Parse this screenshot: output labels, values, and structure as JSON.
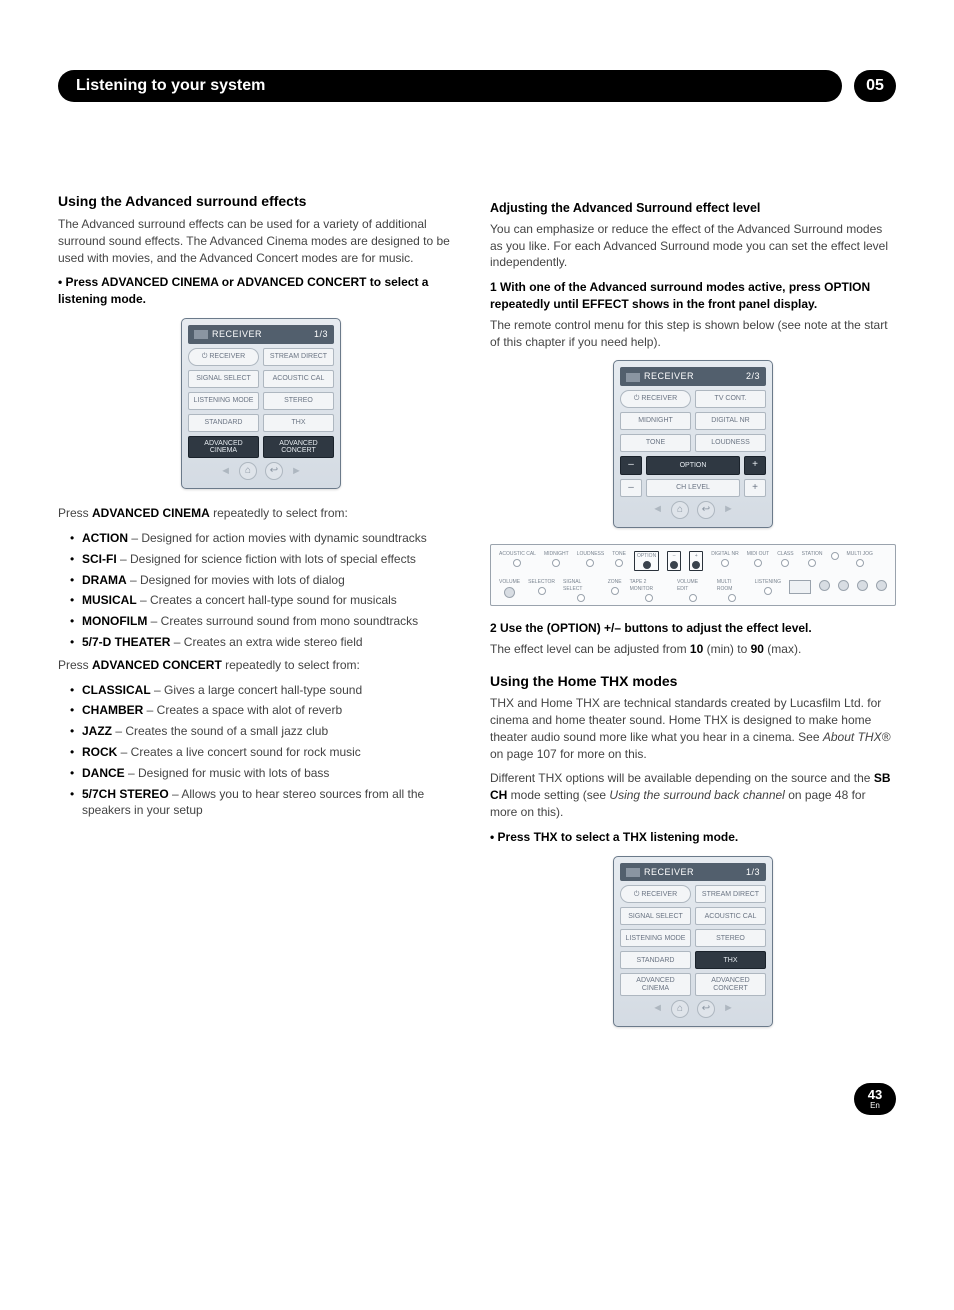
{
  "header": {
    "title": "Listening to your system",
    "chapter": "05"
  },
  "left": {
    "section_title": "Using the Advanced surround effects",
    "intro": "The Advanced surround effects can be used for a variety of additional surround sound effects. The Advanced Cinema modes are designed to be used with movies, and the Advanced Concert modes are for music.",
    "step1": "•   Press ADVANCED CINEMA or ADVANCED CONCERT to select a listening mode.",
    "remote1": {
      "title_left": "RECEIVER",
      "title_right": "1/3",
      "rows": [
        [
          {
            "label": "⏻ RECEIVER",
            "cls": "pill"
          },
          {
            "label": "STREAM DIRECT"
          }
        ],
        [
          {
            "label": "SIGNAL SELECT"
          },
          {
            "label": "ACOUSTIC CAL"
          }
        ],
        [
          {
            "label": "LISTENING MODE"
          },
          {
            "label": "STEREO"
          }
        ],
        [
          {
            "label": "STANDARD"
          },
          {
            "label": "THX"
          }
        ],
        [
          {
            "label": "ADVANCED CINEMA",
            "cls": "dark"
          },
          {
            "label": "ADVANCED CONCERT",
            "cls": "dark"
          }
        ]
      ]
    },
    "press_cinema_pre": "Press ",
    "press_cinema_bold": "ADVANCED CINEMA",
    "press_cinema_post": " repeatedly to select from:",
    "cinema_modes": [
      {
        "name": "ACTION",
        "desc": " – Designed for action movies with dynamic soundtracks"
      },
      {
        "name": "SCI-FI",
        "desc": " – Designed for science fiction with lots of special effects"
      },
      {
        "name": "DRAMA",
        "desc": " – Designed for movies with lots of dialog"
      },
      {
        "name": "MUSICAL",
        "desc": " – Creates a concert hall-type sound for musicals"
      },
      {
        "name": "MONOFILM",
        "desc": " – Creates surround sound from mono soundtracks"
      },
      {
        "name": "5/7-D THEATER",
        "desc": " – Creates an extra wide stereo field"
      }
    ],
    "press_concert_pre": "Press ",
    "press_concert_bold": "ADVANCED CONCERT",
    "press_concert_post": " repeatedly to select from:",
    "concert_modes": [
      {
        "name": "CLASSICAL",
        "desc": " – Gives a large concert hall-type sound"
      },
      {
        "name": "CHAMBER",
        "desc": " – Creates a space with alot of reverb"
      },
      {
        "name": "JAZZ",
        "desc": " – Creates the sound of a small jazz club"
      },
      {
        "name": "ROCK",
        "desc": " – Creates a live concert sound for rock music"
      },
      {
        "name": "DANCE",
        "desc": " – Designed for music with lots of bass"
      },
      {
        "name": "5/7CH STEREO",
        "desc": " – Allows you to hear stereo sources from all the speakers in your setup"
      }
    ]
  },
  "right": {
    "adj_title": "Adjusting the Advanced Surround effect level",
    "adj_intro": "You can emphasize or reduce the effect of the Advanced Surround modes as you like. For each Advanced Surround mode you can set the effect level independently.",
    "adj_step1": "1   With one of the Advanced surround modes active, press OPTION repeatedly until EFFECT shows in the front panel display.",
    "adj_step1_body": "The remote control menu for this step is shown below (see note at the start of this chapter if you need help).",
    "remote2": {
      "title_left": "RECEIVER",
      "title_right": "2/3",
      "rows": [
        [
          {
            "label": "⏻ RECEIVER",
            "cls": "pill"
          },
          {
            "label": "TV CONT."
          }
        ],
        [
          {
            "label": "MIDNIGHT"
          },
          {
            "label": "DIGITAL NR"
          }
        ],
        [
          {
            "label": "TONE"
          },
          {
            "label": "LOUDNESS"
          }
        ],
        [
          {
            "label": "–",
            "cls": "dark mini"
          },
          {
            "label": "OPTION",
            "cls": "dark"
          },
          {
            "label": "+",
            "cls": "dark mini"
          }
        ],
        [
          {
            "label": "–",
            "cls": "mini"
          },
          {
            "label": "CH LEVEL"
          },
          {
            "label": "+",
            "cls": "mini"
          }
        ]
      ]
    },
    "panel_labels_top": [
      "ACOUSTIC CAL",
      "MIDNIGHT",
      "LOUDNESS",
      "TONE",
      "OPTION",
      "–",
      "+",
      "DIGITAL NR",
      "MIDI OUT",
      "CLASS",
      "STATION",
      "",
      "MULTI JOG"
    ],
    "panel_labels_bot": [
      "VOLUME",
      "SELECTOR",
      "SIGNAL SELECT",
      "ZONE",
      "TAPE 2 MONITOR",
      "VOLUME EDIT",
      "MULTI ROOM",
      "LISTENING",
      "",
      "",
      "",
      "",
      ""
    ],
    "adj_step2": "2   Use the (OPTION) +/– buttons to adjust the effect level.",
    "adj_step2_body_pre": "The effect level can be adjusted from ",
    "adj_step2_min": "10",
    "adj_step2_mid": " (min) to ",
    "adj_step2_max": "90",
    "adj_step2_body_post": " (max).",
    "thx_title": "Using the Home THX modes",
    "thx_body1_pre": "THX and Home THX are technical standards created by Lucasfilm Ltd. for cinema and home theater sound. Home THX is designed to make home theater audio sound more like what you hear in a cinema. See ",
    "thx_body1_ital": "About THX®",
    "thx_body1_post": " on page 107 for more on this.",
    "thx_body2_pre": "Different THX options will be available depending on the source and the ",
    "thx_body2_bold": "SB CH",
    "thx_body2_mid": " mode setting (see ",
    "thx_body2_ital": "Using the surround back channel",
    "thx_body2_post": " on page 48 for more on this).",
    "thx_step": "•   Press THX to select a THX listening mode.",
    "remote3": {
      "title_left": "RECEIVER",
      "title_right": "1/3",
      "rows": [
        [
          {
            "label": "⏻ RECEIVER",
            "cls": "pill"
          },
          {
            "label": "STREAM DIRECT"
          }
        ],
        [
          {
            "label": "SIGNAL SELECT"
          },
          {
            "label": "ACOUSTIC CAL"
          }
        ],
        [
          {
            "label": "LISTENING MODE"
          },
          {
            "label": "STEREO"
          }
        ],
        [
          {
            "label": "STANDARD"
          },
          {
            "label": "THX",
            "cls": "dark"
          }
        ],
        [
          {
            "label": "ADVANCED CINEMA"
          },
          {
            "label": "ADVANCED CONCERT"
          }
        ]
      ]
    }
  },
  "footer": {
    "page": "43",
    "lang": "En"
  },
  "colors": {
    "text": "#000000",
    "body_text": "#444444",
    "remote_bg_top": "#e6ebf0",
    "remote_bg_bot": "#d4dbe3",
    "remote_border": "#6b7a8a",
    "btn_bg": "#f3f5f7",
    "btn_border": "#aeb7c0",
    "btn_text": "#6a7483",
    "btn_dark_bg": "#2f3842",
    "btn_dark_text": "#e6ebf0",
    "header_bg": "#000000",
    "header_text": "#ffffff"
  }
}
